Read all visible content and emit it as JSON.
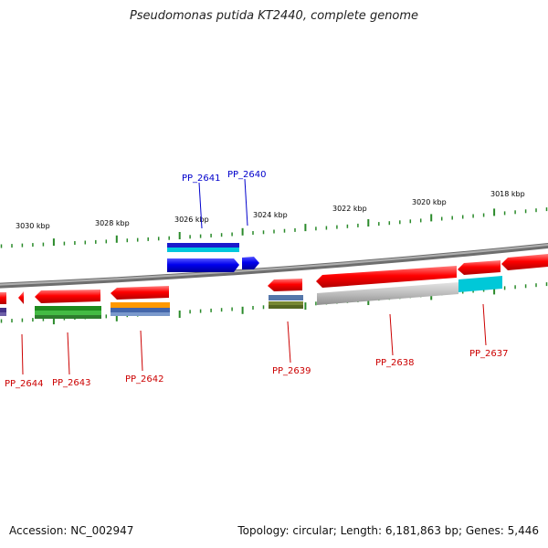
{
  "title": "Pseudomonas putida KT2440, complete genome",
  "footer": {
    "accession": "Accession: NC_002947",
    "summary": "Topology: circular; Length: 6,181,863 bp; Genes: 5,446"
  },
  "ruler": [
    "3030 kbp",
    "3028 kbp",
    "3026 kbp",
    "3024 kbp",
    "3022 kbp",
    "3020 kbp",
    "3018 kbp"
  ],
  "colors": {
    "backbone": "#888888",
    "tick": "#2a8a2a",
    "forward_label": "#0000cc",
    "reverse_label": "#cc0000",
    "red": "#ff0000",
    "blue": "#0000ee",
    "cyan": "#00ccdd",
    "green": "#33aa33",
    "orange": "#ff9900",
    "steel": "#5577aa",
    "gray": "#bbbbbb",
    "olive": "#778833",
    "purple": "#443388"
  },
  "genes": [
    {
      "id": "PP_2641",
      "strand": "forward"
    },
    {
      "id": "PP_2640",
      "strand": "forward"
    },
    {
      "id": "PP_2644",
      "strand": "reverse"
    },
    {
      "id": "PP_2643",
      "strand": "reverse"
    },
    {
      "id": "PP_2642",
      "strand": "reverse"
    },
    {
      "id": "PP_2639",
      "strand": "reverse"
    },
    {
      "id": "PP_2638",
      "strand": "reverse"
    },
    {
      "id": "PP_2637",
      "strand": "reverse"
    }
  ]
}
